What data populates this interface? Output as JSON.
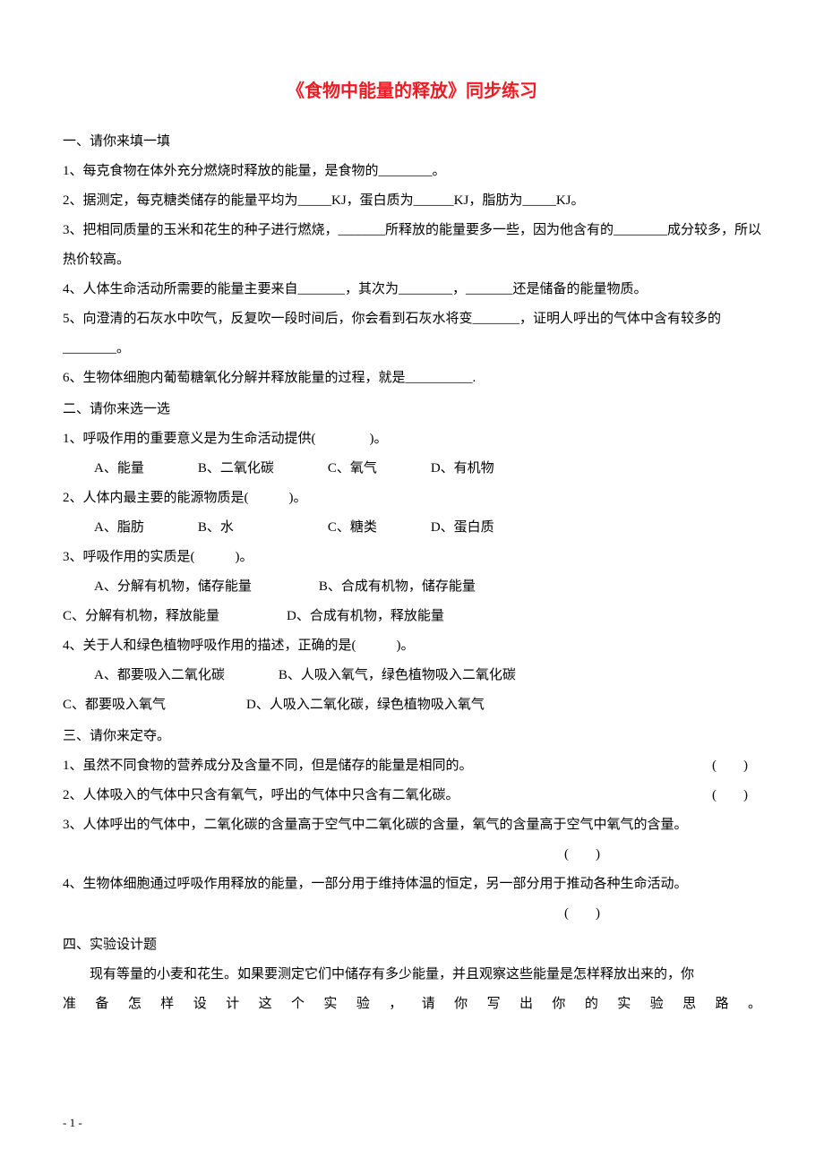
{
  "colors": {
    "title": "#ed1c24",
    "text": "#000000",
    "background": "#ffffff"
  },
  "typography": {
    "title_fontsize": 20,
    "body_fontsize": 15,
    "line_height": 2.2,
    "font_family": "SimSun"
  },
  "title": "《食物中能量的释放》同步练习",
  "section1": {
    "header": "一、请你来填一填",
    "q1": "1、每克食物在体外充分燃烧时释放的能量，是食物的________。",
    "q2": "2、据测定，每克糖类储存的能量平均为_____KJ，蛋白质为______KJ，脂肪为_____KJ。",
    "q3": "3、把相同质量的玉米和花生的种子进行燃烧，_______所释放的能量要多一些，因为他含有的________成分较多，所以热价较高。",
    "q4": "4、人体生命活动所需要的能量主要来自_______，其次为________，_______还是储备的能量物质。",
    "q5": "5、向澄清的石灰水中吹气，反复吹一段时间后，你会看到石灰水将变_______，证明人呼出的气体中含有较多的________。",
    "q6": "6、生物体细胞内葡萄糖氧化分解并释放能量的过程，就是__________."
  },
  "section2": {
    "header": "二、请你来选一选",
    "q1": "1、呼吸作用的重要意义是为生命活动提供(　　　　)。",
    "q1_options": "A、能量　　　　B、二氧化碳　　　　C、氧气　　　　D、有机物",
    "q2": "2、人体内最主要的能源物质是(　　　)。",
    "q2_options": "A、脂肪　　　　B、水　　　　　　　C、糖类　　　　D、蛋白质",
    "q3": "3、呼吸作用的实质是(　　　)。",
    "q3_options_ab": "A、分解有机物，储存能量　　　　　B、合成有机物，储存能量",
    "q3_options_cd": "C、分解有机物，释放能量　　　　　D、合成有机物，释放能量",
    "q4": "4、关于人和绿色植物呼吸作用的描述，正确的是(　　　)。",
    "q4_options_ab": "A、都要吸入二氧化碳　　　　B、人吸入氧气，绿色植物吸入二氧化碳",
    "q4_options_cd": "C、都要吸入氧气　　　　　　D、人吸入二氧化碳，绿色植物吸入氧气"
  },
  "section3": {
    "header": "三、请你来定夺。",
    "q1": "1、虽然不同食物的营养成分及含量不同，但是储存的能量是相同的。",
    "q2": "2、人体吸入的气体中只含有氧气，呼出的气体中只含有二氧化碳。",
    "q3": "3、人体呼出的气体中，二氧化碳的含量高于空气中二氧化碳的含量，氧气的含量高于空气中氧气的含量。",
    "q4": "4、生物体细胞通过呼吸作用释放的能量，一部分用于维持体温的恒定，另一部分用于推动各种生命活动。",
    "bracket": "(　　)"
  },
  "section4": {
    "header": "四、实验设计题",
    "body1": "现有等量的小麦和花生。如果要测定它们中储存有多少能量，并且观察这些能量是怎样释放出来的，你",
    "body2": "准 备 怎 样 设 计 这 个 实 验 ， 请 你 写 出 你 的 实 验 思 路 。"
  },
  "page_number": "- 1 -"
}
